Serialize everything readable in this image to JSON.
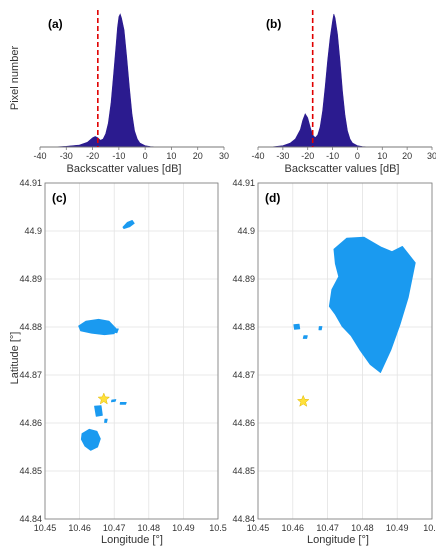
{
  "colors": {
    "histogram_fill": "#2b1b8f",
    "threshold_line": "#e00000",
    "water_patch": "#1a9af0",
    "star": "#ffe03a",
    "grid": "#e3e3e3",
    "axis": "#777777"
  },
  "chart_data": [
    {
      "id": "a",
      "type": "area",
      "panel_label": "(a)",
      "xlabel": "Backscatter values [dB]",
      "ylabel": "Pixel number",
      "xlim": [
        -40,
        30
      ],
      "xticks": [
        -40,
        -30,
        -20,
        -10,
        0,
        10,
        20,
        30
      ],
      "threshold_db": -18,
      "series": [
        {
          "x": [
            -35,
            -30,
            -25,
            -22,
            -20,
            -19,
            -18,
            -17,
            -16,
            -15,
            -14,
            -13,
            -12,
            -11,
            -10.5,
            -10,
            -9.5,
            -9,
            -8,
            -7,
            -6,
            -5,
            -4,
            -3,
            -2,
            0,
            2,
            5
          ],
          "values": [
            0,
            0.005,
            0.015,
            0.035,
            0.07,
            0.08,
            0.07,
            0.05,
            0.06,
            0.1,
            0.18,
            0.33,
            0.55,
            0.78,
            0.9,
            0.98,
            1.0,
            0.97,
            0.88,
            0.68,
            0.45,
            0.25,
            0.12,
            0.06,
            0.03,
            0.01,
            0.004,
            0
          ]
        }
      ]
    },
    {
      "id": "b",
      "type": "area",
      "panel_label": "(b)",
      "xlabel": "Backscatter values [dB]",
      "xlim": [
        -40,
        30
      ],
      "xticks": [
        -40,
        -30,
        -20,
        -10,
        0,
        10,
        20,
        30
      ],
      "threshold_db": -18,
      "series": [
        {
          "x": [
            -35,
            -30,
            -27,
            -25,
            -23,
            -22,
            -21,
            -20,
            -19,
            -18,
            -17,
            -16,
            -15,
            -14,
            -13,
            -12,
            -11,
            -10,
            -9.5,
            -9,
            -8,
            -7,
            -6,
            -5,
            -4,
            -3,
            -2,
            0,
            2,
            5
          ],
          "values": [
            0,
            0.01,
            0.03,
            0.06,
            0.13,
            0.2,
            0.25,
            0.22,
            0.15,
            0.09,
            0.07,
            0.09,
            0.15,
            0.27,
            0.45,
            0.65,
            0.82,
            0.95,
            1.0,
            0.97,
            0.85,
            0.65,
            0.42,
            0.24,
            0.12,
            0.06,
            0.03,
            0.01,
            0.004,
            0
          ]
        }
      ]
    },
    {
      "id": "c",
      "type": "scatter",
      "panel_label": "(c)",
      "xlabel": "Longitude [°]",
      "ylabel": "Latitude [°]",
      "xlim": [
        10.45,
        10.5
      ],
      "ylim": [
        44.84,
        44.91
      ],
      "xticks": [
        "10.45",
        "10.46",
        "10.47",
        "10.48",
        "10.49",
        "10.5"
      ],
      "yticks": [
        "44.84",
        "44.85",
        "44.86",
        "44.87",
        "44.88",
        "44.89",
        "44.9",
        "44.91"
      ],
      "grid": true,
      "star": {
        "lon": 10.467,
        "lat": 44.865
      },
      "patches": [
        {
          "lon": [
            10.4725,
            10.4738,
            10.4752,
            10.4758,
            10.4745,
            10.4728
          ],
          "lat": [
            44.9008,
            44.9018,
            44.9022,
            44.9016,
            44.9009,
            44.9005
          ]
        },
        {
          "lon": [
            10.4597,
            10.4618,
            10.4655,
            10.4685,
            10.4705,
            10.47,
            10.4672,
            10.4635,
            10.4603
          ],
          "lat": [
            44.8802,
            44.8812,
            44.8816,
            44.8812,
            44.8797,
            44.8786,
            44.8784,
            44.8787,
            44.8792
          ]
        },
        {
          "lon": [
            10.4703,
            10.4712,
            10.4708,
            10.4701
          ],
          "lat": [
            44.8796,
            44.8796,
            44.8788,
            44.8789
          ]
        },
        {
          "lon": [
            10.4643,
            10.4662,
            10.4666,
            10.4648
          ],
          "lat": [
            44.8635,
            44.8636,
            44.8616,
            44.8614
          ]
        },
        {
          "lon": [
            10.4673,
            10.468,
            10.4678,
            10.4672
          ],
          "lat": [
            44.8608,
            44.8608,
            44.8601,
            44.8601
          ]
        },
        {
          "lon": [
            10.4693,
            10.4705,
            10.4703,
            10.4692
          ],
          "lat": [
            44.8648,
            44.8649,
            44.8645,
            44.8644
          ]
        },
        {
          "lon": [
            10.4718,
            10.4735,
            10.4733,
            10.4717
          ],
          "lat": [
            44.8643,
            44.8643,
            44.8639,
            44.8639
          ]
        },
        {
          "lon": [
            10.4607,
            10.4628,
            10.465,
            10.466,
            10.4652,
            10.4632,
            10.4615,
            10.4605
          ],
          "lat": [
            44.8578,
            44.8587,
            44.8583,
            44.8567,
            44.855,
            44.8543,
            44.8552,
            44.8566
          ]
        }
      ]
    },
    {
      "id": "d",
      "type": "scatter",
      "panel_label": "(d)",
      "xlabel": "Longitude [°]",
      "xlim": [
        10.45,
        10.5
      ],
      "ylim": [
        44.84,
        44.91
      ],
      "xticks": [
        "10.45",
        "10.46",
        "10.47",
        "10.48",
        "10.49",
        "10.5"
      ],
      "yticks": [
        "44.84",
        "44.85",
        "44.86",
        "44.87",
        "44.88",
        "44.89",
        "44.9",
        "44.91"
      ],
      "grid": true,
      "star": {
        "lon": 10.463,
        "lat": 44.8645
      },
      "patches": [
        {
          "lon": [
            10.4718,
            10.4755,
            10.4805,
            10.4855,
            10.4885,
            10.4915,
            10.4952,
            10.4932,
            10.4908,
            10.4882,
            10.4852,
            10.4822,
            10.4792,
            10.4767,
            10.4742,
            10.4722,
            10.4705,
            10.4712,
            10.4732,
            10.4722
          ],
          "lat": [
            44.8962,
            44.8985,
            44.8987,
            44.8966,
            44.8957,
            44.8968,
            44.8934,
            44.8862,
            44.8805,
            44.8752,
            44.8705,
            44.8722,
            44.8753,
            44.8782,
            44.8801,
            44.8826,
            44.8843,
            44.8878,
            44.8905,
            44.8932
          ]
        },
        {
          "lon": [
            10.4603,
            10.4618,
            10.462,
            10.4605
          ],
          "lat": [
            44.8805,
            44.8806,
            44.8796,
            44.8795
          ]
        },
        {
          "lon": [
            10.4676,
            10.4684,
            10.4682,
            10.4675
          ],
          "lat": [
            44.8801,
            44.8801,
            44.8794,
            44.8794
          ]
        },
        {
          "lon": [
            10.4632,
            10.4642,
            10.464,
            10.463
          ],
          "lat": [
            44.8782,
            44.8782,
            44.8776,
            44.8776
          ]
        }
      ]
    }
  ]
}
